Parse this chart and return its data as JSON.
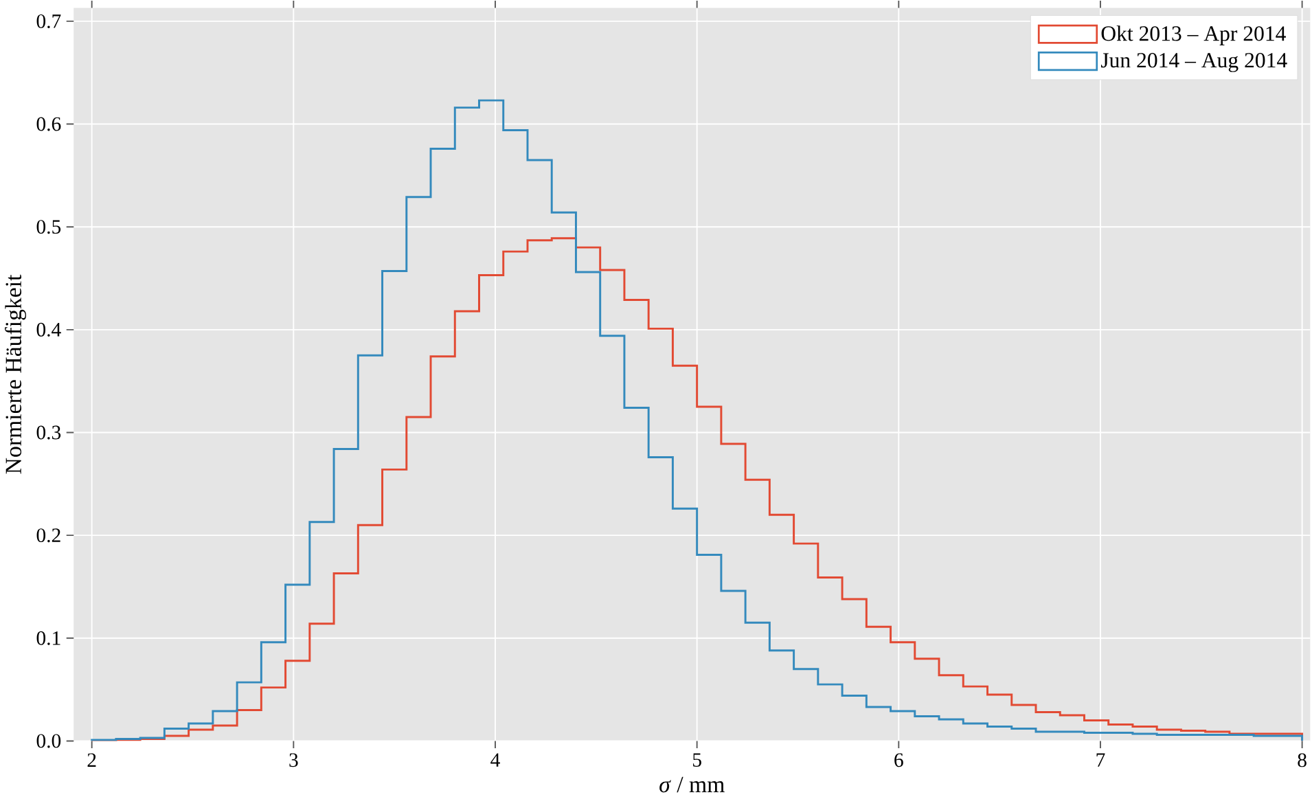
{
  "chart_data": {
    "type": "histogram",
    "xlabel": "*σ* / mm",
    "ylabel": "Normierte Häufigkeit",
    "bins": [
      2.0,
      2.12,
      2.24,
      2.36,
      2.48,
      2.6,
      2.72,
      2.84,
      2.96,
      3.08,
      3.2,
      3.32,
      3.44,
      3.56,
      3.68,
      3.8,
      3.92,
      4.04,
      4.16,
      4.28,
      4.4,
      4.52,
      4.64,
      4.76,
      4.88,
      5.0,
      5.12,
      5.24,
      5.36,
      5.48,
      5.6,
      5.72,
      5.84,
      5.96,
      6.08,
      6.2,
      6.32,
      6.44,
      6.56,
      6.68,
      6.8,
      6.92,
      7.04,
      7.16,
      7.28,
      7.4,
      7.52,
      7.64,
      7.76,
      7.88,
      8.0
    ],
    "series": [
      {
        "name": "Okt 2013 – Apr 2014",
        "color": "#e24a33",
        "values": [
          0.0,
          0.001,
          0.002,
          0.005,
          0.011,
          0.015,
          0.03,
          0.052,
          0.078,
          0.114,
          0.163,
          0.21,
          0.264,
          0.315,
          0.374,
          0.418,
          0.453,
          0.476,
          0.487,
          0.489,
          0.48,
          0.458,
          0.429,
          0.401,
          0.365,
          0.325,
          0.289,
          0.254,
          0.22,
          0.192,
          0.159,
          0.138,
          0.111,
          0.096,
          0.08,
          0.064,
          0.053,
          0.045,
          0.035,
          0.028,
          0.025,
          0.02,
          0.016,
          0.014,
          0.011,
          0.01,
          0.009,
          0.007,
          0.007,
          0.007
        ]
      },
      {
        "name": "Jun 2014 – Aug 2014",
        "color": "#348abd",
        "values": [
          0.001,
          0.002,
          0.003,
          0.012,
          0.017,
          0.029,
          0.057,
          0.096,
          0.152,
          0.213,
          0.284,
          0.375,
          0.457,
          0.529,
          0.576,
          0.616,
          0.623,
          0.594,
          0.565,
          0.514,
          0.456,
          0.394,
          0.324,
          0.276,
          0.226,
          0.181,
          0.146,
          0.115,
          0.088,
          0.07,
          0.055,
          0.044,
          0.033,
          0.029,
          0.024,
          0.021,
          0.017,
          0.014,
          0.012,
          0.009,
          0.009,
          0.008,
          0.008,
          0.007,
          0.006,
          0.006,
          0.006,
          0.006,
          0.005,
          0.005
        ]
      }
    ],
    "xlim": [
      1.91,
      8.04
    ],
    "ylim": [
      0,
      0.713
    ],
    "xticks": [
      2,
      3,
      4,
      5,
      6,
      7,
      8
    ],
    "yticks": [
      {
        "value": 0,
        "label": "0.0"
      },
      0.1,
      0.2,
      0.3,
      0.4,
      0.5,
      0.6,
      0.7
    ],
    "grid": true,
    "legend": "top right"
  }
}
